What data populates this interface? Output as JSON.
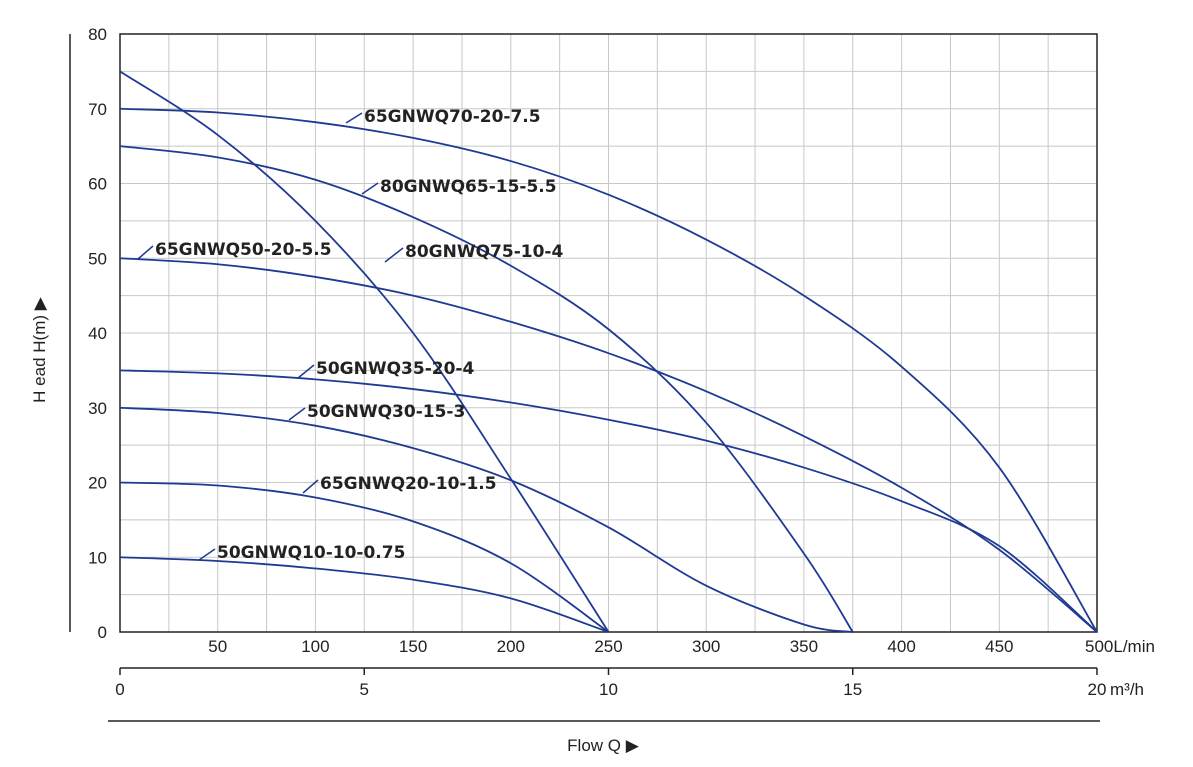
{
  "chart_data": {
    "type": "line",
    "xlabel": "Flow Q ▶",
    "ylabel": "H ead H(m) ▶",
    "x_unit_primary": "L/min",
    "x_unit_secondary": "m³/h",
    "xlim": [
      0,
      500
    ],
    "ylim": [
      0,
      80
    ],
    "x_ticks_primary": [
      "50",
      "100",
      "150",
      "200",
      "250",
      "300",
      "350",
      "400",
      "450",
      "500L/min"
    ],
    "x_ticks_secondary": [
      "0",
      "5",
      "10",
      "15",
      "20"
    ],
    "secondary_last_unit": "m³/h",
    "y_ticks": [
      "0",
      "10",
      "20",
      "30",
      "40",
      "50",
      "60",
      "70",
      "80"
    ],
    "grid": true,
    "series": [
      {
        "name": "65GNWQ70-20-7.5",
        "color": "#1f3a93",
        "x": [
          0,
          50,
          100,
          150,
          200,
          250,
          300,
          350,
          400,
          450,
          500
        ],
        "y": [
          70,
          69.5,
          68.2,
          66.1,
          63,
          58.5,
          52.5,
          45,
          35.5,
          22,
          0
        ]
      },
      {
        "name": "80GNWQ65-15-5.5",
        "color": "#1f3a93",
        "x": [
          0,
          50,
          100,
          150,
          200,
          250,
          300,
          350,
          375
        ],
        "y": [
          65,
          63.5,
          60.5,
          55.5,
          49,
          40.5,
          28,
          10.5,
          0
        ]
      },
      {
        "name": "80GNWQ75-10-4",
        "color": "#1f3a93",
        "x": [
          0,
          50,
          100,
          150,
          200,
          250
        ],
        "y": [
          75,
          66.5,
          55,
          40,
          20.5,
          0
        ]
      },
      {
        "name": "65GNWQ50-20-5.5",
        "color": "#1f3a93",
        "x": [
          0,
          50,
          100,
          150,
          200,
          250,
          300,
          350,
          400,
          450,
          500
        ],
        "y": [
          50,
          49.2,
          47.5,
          45,
          41.5,
          37.3,
          32.2,
          26.2,
          19.3,
          11,
          0
        ]
      },
      {
        "name": "50GNWQ35-20-4",
        "color": "#1f3a93",
        "x": [
          0,
          50,
          100,
          150,
          200,
          250,
          300,
          350,
          400,
          450,
          500
        ],
        "y": [
          35,
          34.6,
          33.8,
          32.5,
          30.7,
          28.4,
          25.6,
          22,
          17.5,
          11.5,
          0
        ]
      },
      {
        "name": "50GNWQ30-15-3",
        "color": "#1f3a93",
        "x": [
          0,
          50,
          100,
          150,
          200,
          250,
          300,
          350,
          375
        ],
        "y": [
          30,
          29.3,
          27.6,
          24.6,
          20.3,
          14,
          6.2,
          1,
          0
        ]
      },
      {
        "name": "65GNWQ20-10-1.5",
        "color": "#1f3a93",
        "x": [
          0,
          50,
          100,
          150,
          200,
          250
        ],
        "y": [
          20,
          19.6,
          18,
          14.8,
          9.2,
          0
        ]
      },
      {
        "name": "50GNWQ10-10-0.75",
        "color": "#1f3a93",
        "x": [
          0,
          50,
          100,
          150,
          200,
          250
        ],
        "y": [
          10,
          9.5,
          8.5,
          7,
          4.5,
          0
        ]
      }
    ]
  }
}
